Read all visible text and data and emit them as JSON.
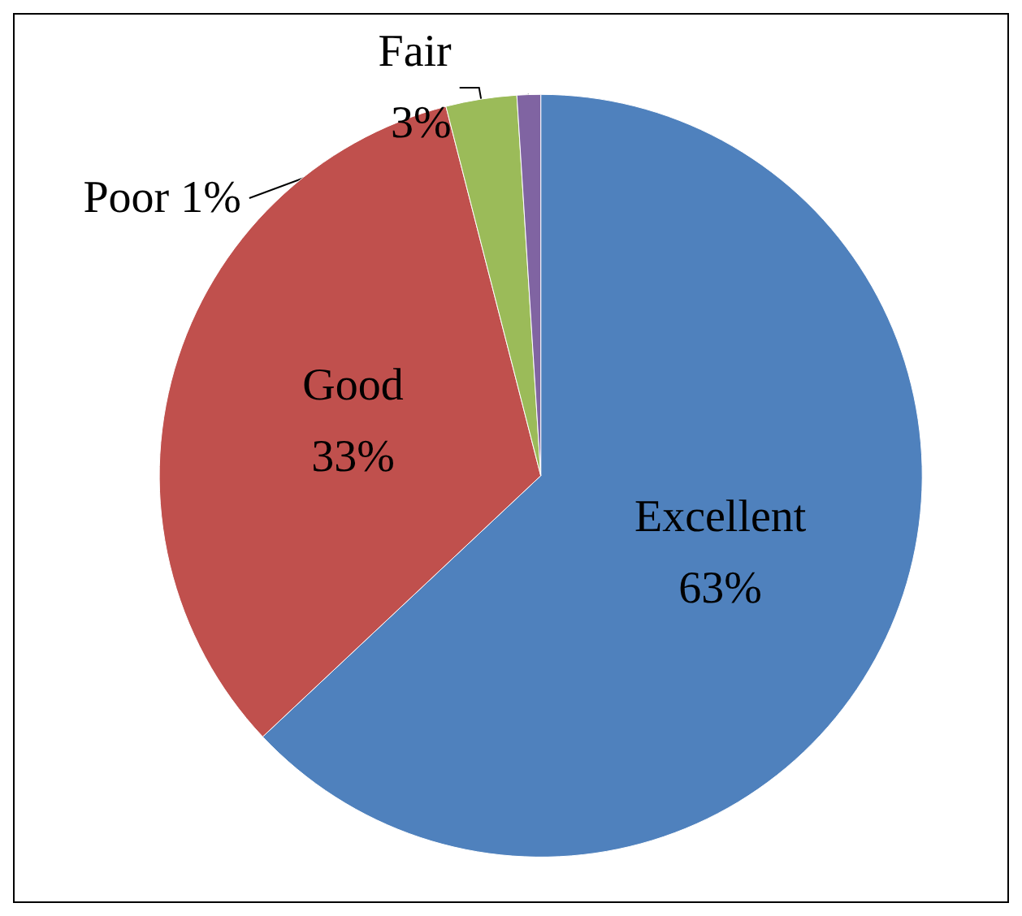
{
  "chart_data": {
    "type": "pie",
    "categories": [
      "Excellent",
      "Good",
      "Fair",
      "Poor"
    ],
    "values": [
      63,
      33,
      3,
      1
    ],
    "colors": [
      "#4f81bd",
      "#c0504d",
      "#9bbb59",
      "#8064a2"
    ],
    "legend": false,
    "value_labels": [
      "63%",
      "33%",
      "3%",
      "1%"
    ]
  }
}
